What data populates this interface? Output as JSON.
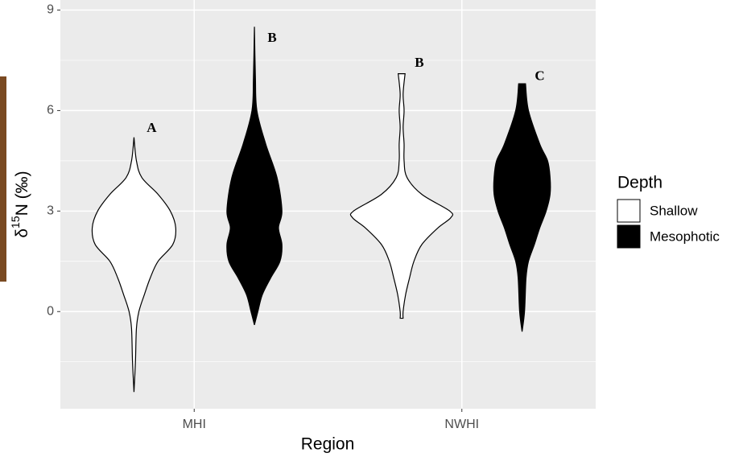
{
  "chart_data": {
    "type": "violin",
    "xlabel": "Region",
    "ylabel": {
      "prefix": "δ",
      "sup": "15",
      "suffix": "N (‰)"
    },
    "categories": [
      "MHI",
      "NWHI"
    ],
    "ylim": [
      -2.9,
      9.3
    ],
    "yticks": [
      0,
      3,
      6,
      9
    ],
    "yminor": [
      -1.5,
      1.5,
      4.5,
      7.5
    ],
    "grid": true,
    "legend_title": "Depth",
    "series": [
      {
        "name": "Shallow",
        "color": "#ffffff",
        "violins": [
          {
            "y": [
              5.2,
              4.5,
              4.0,
              3.5,
              3.0,
              2.5,
              2.0,
              1.5,
              1.0,
              0.5,
              0,
              -0.5,
              -1.5,
              -2.4
            ],
            "density": [
              0,
              0.05,
              0.16,
              0.49,
              0.74,
              0.85,
              0.79,
              0.49,
              0.33,
              0.21,
              0.1,
              0.05,
              0.03,
              0
            ]
          },
          {
            "y": [
              7.1,
              6.5,
              6.0,
              5.5,
              5.0,
              4.5,
              4.0,
              3.5,
              3.0,
              2.8,
              2.5,
              2.0,
              1.5,
              1.0,
              0.5,
              0,
              -0.2
            ],
            "density": [
              0.07,
              0.03,
              0.05,
              0.03,
              0.05,
              0.05,
              0.11,
              0.41,
              0.98,
              1,
              0.74,
              0.41,
              0.25,
              0.16,
              0.08,
              0.03,
              0.03
            ]
          }
        ]
      },
      {
        "name": "Mesophotic",
        "color": "#000000",
        "violins": [
          {
            "y": [
              8.5,
              7.0,
              6.0,
              5.0,
              4.0,
              3.0,
              2.5,
              2.0,
              1.5,
              1.0,
              0.5,
              0,
              -0.4
            ],
            "density": [
              0,
              0.02,
              0.05,
              0.23,
              0.46,
              0.56,
              0.49,
              0.56,
              0.52,
              0.33,
              0.16,
              0.07,
              0
            ]
          },
          {
            "y": [
              6.8,
              6.0,
              5.0,
              4.5,
              4.0,
              3.5,
              3.0,
              2.5,
              2.0,
              1.5,
              1.0,
              0,
              -0.6
            ],
            "density": [
              0.07,
              0.13,
              0.36,
              0.52,
              0.57,
              0.57,
              0.49,
              0.36,
              0.25,
              0.13,
              0.08,
              0.05,
              0
            ]
          }
        ]
      }
    ],
    "annotations": [
      {
        "text": "A",
        "category": 0,
        "series": 0,
        "y": 5.45
      },
      {
        "text": "B",
        "category": 0,
        "series": 1,
        "y": 8.15
      },
      {
        "text": "B",
        "category": 1,
        "series": 0,
        "y": 7.4
      },
      {
        "text": "C",
        "category": 1,
        "series": 1,
        "y": 7.0
      }
    ]
  }
}
